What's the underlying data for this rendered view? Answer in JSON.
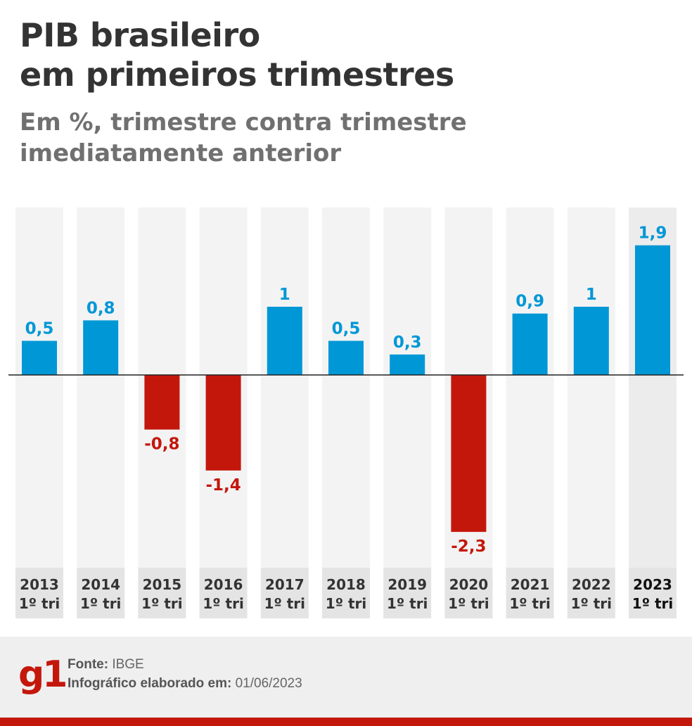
{
  "title": {
    "line1": "PIB brasileiro",
    "line2": "em primeiros trimestres"
  },
  "subtitle": {
    "line1": "Em %, trimestre contra trimestre",
    "line2": "imediatamente anterior"
  },
  "chart_data": {
    "type": "bar",
    "categories": [
      [
        "2013",
        "1º tri"
      ],
      [
        "2014",
        "1º tri"
      ],
      [
        "2015",
        "1º tri"
      ],
      [
        "2016",
        "1º tri"
      ],
      [
        "2017",
        "1º tri"
      ],
      [
        "2018",
        "1º tri"
      ],
      [
        "2019",
        "1º tri"
      ],
      [
        "2020",
        "1º tri"
      ],
      [
        "2021",
        "1º tri"
      ],
      [
        "2022",
        "1º tri"
      ],
      [
        "2023",
        "1º tri"
      ]
    ],
    "values": [
      0.5,
      0.8,
      -0.8,
      -1.4,
      1,
      0.5,
      0.3,
      -2.3,
      0.9,
      1,
      1.9
    ],
    "labels": [
      "0,5",
      "0,8",
      "-0,8",
      "-1,4",
      "1",
      "0,5",
      "0,3",
      "-2,3",
      "0,9",
      "1",
      "1,9"
    ],
    "highlight_index": 10,
    "ylim": [
      -2.3,
      1.9
    ],
    "grid": false,
    "colors": {
      "positive": "#0097d6",
      "negative": "#c4170c",
      "column_bg": "#f3f3f3",
      "column_bg_highlight": "#ececec",
      "label_bg": "#e4e4e4",
      "axis": "#222222"
    }
  },
  "footer": {
    "logo": "g1",
    "source_label": "Fonte:",
    "source_value": "IBGE",
    "date_label": "Infográfico elaborado em:",
    "date_value": "01/06/2023"
  }
}
